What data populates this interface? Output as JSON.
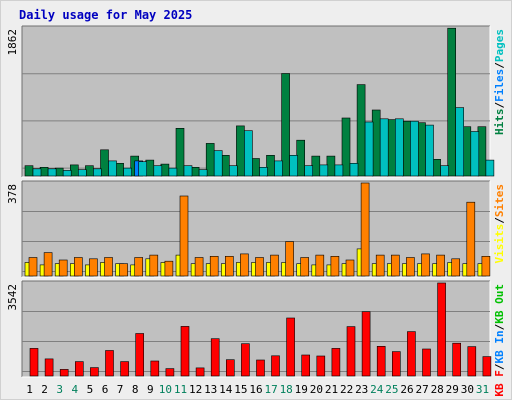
{
  "title": "Daily usage for May 2025",
  "colors": {
    "background": "#eeeeee",
    "border": "#d0d0d0",
    "plot_bg": "#c0c0c0",
    "gridline": "#808080",
    "title_text": "#0000c0",
    "hits": "#008040",
    "files": "#0080ff",
    "pages": "#00c0c0",
    "visits": "#ffff00",
    "sites": "#ff8000",
    "kb_f": "#ff0000",
    "kb_in": "#0080ff",
    "kb_out": "#00c000",
    "weekend_label": "#00805c",
    "weekday_label": "#000000"
  },
  "chart_data": [
    {
      "type": "bar",
      "panel": "top",
      "y_max_label": "1862",
      "ylim": [
        0,
        1862
      ],
      "grid": true,
      "categories": [
        "1",
        "2",
        "3",
        "4",
        "5",
        "6",
        "7",
        "8",
        "9",
        "10",
        "11",
        "12",
        "13",
        "14",
        "15",
        "16",
        "17",
        "18",
        "19",
        "20",
        "21",
        "22",
        "23",
        "24",
        "25",
        "26",
        "27",
        "28",
        "29",
        "30",
        "31"
      ],
      "side_label": [
        {
          "text": "Hits",
          "color": "#008040"
        },
        {
          "text": "/",
          "color": "#000000"
        },
        {
          "text": "Files",
          "color": "#0080ff"
        },
        {
          "text": "/",
          "color": "#000000"
        },
        {
          "text": "Pages",
          "color": "#00c0c0"
        }
      ],
      "series": [
        {
          "name": "Hits",
          "color": "#008040",
          "values": [
            130,
            110,
            100,
            140,
            130,
            330,
            160,
            250,
            200,
            150,
            600,
            110,
            410,
            260,
            630,
            220,
            260,
            1290,
            450,
            250,
            250,
            730,
            1150,
            830,
            710,
            690,
            670,
            210,
            1860,
            620,
            620
          ]
        },
        {
          "name": "Files",
          "color": "#0080ff",
          "values": [
            0,
            0,
            0,
            0,
            0,
            0,
            0,
            190,
            0,
            0,
            0,
            0,
            0,
            0,
            0,
            0,
            0,
            0,
            0,
            0,
            0,
            0,
            0,
            0,
            0,
            0,
            0,
            0,
            0,
            0,
            0
          ]
        },
        {
          "name": "Pages",
          "color": "#00c0c0",
          "values": [
            90,
            90,
            70,
            80,
            90,
            190,
            100,
            180,
            130,
            100,
            130,
            80,
            320,
            130,
            570,
            110,
            190,
            260,
            130,
            140,
            140,
            160,
            680,
            720,
            720,
            690,
            640,
            130,
            860,
            560,
            200
          ]
        }
      ]
    },
    {
      "type": "bar",
      "panel": "middle",
      "y_max_label": "378",
      "ylim": [
        0,
        378
      ],
      "grid": true,
      "categories": [
        "1",
        "2",
        "3",
        "4",
        "5",
        "6",
        "7",
        "8",
        "9",
        "10",
        "11",
        "12",
        "13",
        "14",
        "15",
        "16",
        "17",
        "18",
        "19",
        "20",
        "21",
        "22",
        "23",
        "24",
        "25",
        "26",
        "27",
        "28",
        "29",
        "30",
        "31"
      ],
      "side_label": [
        {
          "text": "Visits",
          "color": "#ffff00"
        },
        {
          "text": "/",
          "color": "#000000"
        },
        {
          "text": "Sites",
          "color": "#ff8000"
        }
      ],
      "series": [
        {
          "name": "Visits",
          "color": "#ffff00",
          "values": [
            55,
            45,
            50,
            50,
            45,
            55,
            50,
            45,
            70,
            55,
            85,
            50,
            50,
            50,
            55,
            55,
            55,
            55,
            50,
            45,
            45,
            50,
            110,
            50,
            50,
            50,
            50,
            50,
            55,
            50,
            50
          ]
        },
        {
          "name": "Sites",
          "color": "#ff8000",
          "values": [
            75,
            95,
            65,
            75,
            70,
            75,
            50,
            75,
            85,
            60,
            325,
            75,
            80,
            80,
            90,
            75,
            85,
            140,
            75,
            85,
            80,
            65,
            378,
            85,
            85,
            75,
            90,
            85,
            70,
            300,
            80
          ]
        }
      ]
    },
    {
      "type": "bar",
      "panel": "bottom",
      "y_max_label": "3542",
      "ylim": [
        0,
        3542
      ],
      "grid": true,
      "categories": [
        "1",
        "2",
        "3",
        "4",
        "5",
        "6",
        "7",
        "8",
        "9",
        "10",
        "11",
        "12",
        "13",
        "14",
        "15",
        "16",
        "17",
        "18",
        "19",
        "20",
        "21",
        "22",
        "23",
        "24",
        "25",
        "26",
        "27",
        "28",
        "29",
        "30",
        "31"
      ],
      "side_label": [
        {
          "text": "KB F",
          "color": "#ff0000"
        },
        {
          "text": "/",
          "color": "#000000"
        },
        {
          "text": "KB In",
          "color": "#0080ff"
        },
        {
          "text": "/",
          "color": "#000000"
        },
        {
          "text": "KB Out",
          "color": "#00c000"
        }
      ],
      "series": [
        {
          "name": "KB F",
          "color": "#ff0000",
          "values": [
            1050,
            650,
            250,
            550,
            320,
            970,
            550,
            1620,
            570,
            280,
            1890,
            310,
            1420,
            620,
            1230,
            610,
            770,
            2210,
            800,
            760,
            1050,
            1880,
            2450,
            1130,
            930,
            1690,
            1030,
            3542,
            1250,
            1120,
            740
          ]
        }
      ]
    }
  ],
  "x_labels": [
    {
      "text": "1",
      "weekend": false
    },
    {
      "text": "2",
      "weekend": false
    },
    {
      "text": "3",
      "weekend": true
    },
    {
      "text": "4",
      "weekend": true
    },
    {
      "text": "5",
      "weekend": false
    },
    {
      "text": "6",
      "weekend": false
    },
    {
      "text": "7",
      "weekend": false
    },
    {
      "text": "8",
      "weekend": false
    },
    {
      "text": "9",
      "weekend": false
    },
    {
      "text": "10",
      "weekend": true
    },
    {
      "text": "11",
      "weekend": true
    },
    {
      "text": "12",
      "weekend": false
    },
    {
      "text": "13",
      "weekend": false
    },
    {
      "text": "14",
      "weekend": false
    },
    {
      "text": "15",
      "weekend": false
    },
    {
      "text": "16",
      "weekend": false
    },
    {
      "text": "17",
      "weekend": true
    },
    {
      "text": "18",
      "weekend": true
    },
    {
      "text": "19",
      "weekend": false
    },
    {
      "text": "20",
      "weekend": false
    },
    {
      "text": "21",
      "weekend": false
    },
    {
      "text": "22",
      "weekend": false
    },
    {
      "text": "23",
      "weekend": false
    },
    {
      "text": "24",
      "weekend": true
    },
    {
      "text": "25",
      "weekend": true
    },
    {
      "text": "26",
      "weekend": false
    },
    {
      "text": "27",
      "weekend": false
    },
    {
      "text": "28",
      "weekend": false
    },
    {
      "text": "29",
      "weekend": false
    },
    {
      "text": "30",
      "weekend": false
    },
    {
      "text": "31",
      "weekend": true
    }
  ]
}
